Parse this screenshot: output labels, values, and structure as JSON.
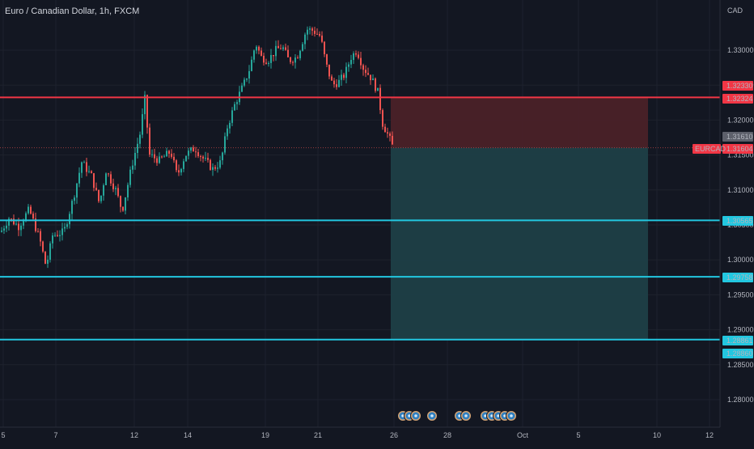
{
  "header": {
    "symbol_title": "Euro / Canadian Dollar, 1h, FXCM",
    "currency": "CAD"
  },
  "colors": {
    "background": "#131722",
    "grid": "#1e222d",
    "candle_up": "#26a69a",
    "candle_down": "#ef5350",
    "stop_zone": "#4a2128",
    "target_zone": "#1d3f47",
    "resistance_line": "#f23645",
    "support_line": "#22c7e0"
  },
  "chart_data": {
    "type": "candlestick",
    "instrument": "EURCAD",
    "timeframe": "1h",
    "y_ticks": [
      "1.33000",
      "1.32500",
      "1.32000",
      "1.31500",
      "1.31000",
      "1.30500",
      "1.30000",
      "1.29500",
      "1.29000",
      "1.28500",
      "1.28000"
    ],
    "x_ticks": [
      "5",
      "7",
      "12",
      "14",
      "19",
      "21",
      "26",
      "28",
      "Oct",
      "5",
      "10",
      "12"
    ],
    "ylim": [
      1.2765,
      1.3385
    ],
    "price_labels": {
      "upper_a": "1.32330",
      "upper_b": "1.32324",
      "current_a": "1.31610",
      "current_symbol": "EURCAD",
      "current_b": "1.31604",
      "support_1": "1.30565",
      "support_2": "1.29758",
      "support_3a": "1.28861",
      "support_3b": "1.28860"
    },
    "levels": {
      "resistance": 1.32324,
      "current": 1.31604,
      "support": [
        1.30565,
        1.29758,
        1.2886
      ]
    },
    "position": {
      "type": "short",
      "entry": 1.31604,
      "stop": 1.32324,
      "target": 1.28861
    },
    "price_path": [
      [
        0,
        1.304
      ],
      [
        10,
        1.306
      ],
      [
        22,
        1.3048
      ],
      [
        35,
        1.3072
      ],
      [
        48,
        1.303
      ],
      [
        56,
        1.299
      ],
      [
        64,
        1.3035
      ],
      [
        78,
        1.304
      ],
      [
        90,
        1.309
      ],
      [
        100,
        1.314
      ],
      [
        112,
        1.312
      ],
      [
        122,
        1.308
      ],
      [
        130,
        1.3128
      ],
      [
        142,
        1.31
      ],
      [
        150,
        1.307
      ],
      [
        162,
        1.3135
      ],
      [
        172,
        1.318
      ],
      [
        178,
        1.323
      ],
      [
        184,
        1.315
      ],
      [
        196,
        1.3142
      ],
      [
        210,
        1.3155
      ],
      [
        218,
        1.312
      ],
      [
        228,
        1.315
      ],
      [
        240,
        1.316
      ],
      [
        250,
        1.3145
      ],
      [
        262,
        1.313
      ],
      [
        272,
        1.314
      ],
      [
        280,
        1.319
      ],
      [
        290,
        1.3225
      ],
      [
        300,
        1.325
      ],
      [
        308,
        1.3275
      ],
      [
        315,
        1.331
      ],
      [
        322,
        1.329
      ],
      [
        330,
        1.3285
      ],
      [
        340,
        1.33
      ],
      [
        348,
        1.3305
      ],
      [
        356,
        1.3285
      ],
      [
        366,
        1.329
      ],
      [
        372,
        1.331
      ],
      [
        378,
        1.333
      ],
      [
        386,
        1.3328
      ],
      [
        395,
        1.332
      ],
      [
        402,
        1.328
      ],
      [
        410,
        1.325
      ],
      [
        418,
        1.3255
      ],
      [
        425,
        1.3265
      ],
      [
        433,
        1.329
      ],
      [
        440,
        1.33
      ],
      [
        448,
        1.3275
      ],
      [
        458,
        1.326
      ],
      [
        466,
        1.324
      ],
      [
        472,
        1.3195
      ],
      [
        480,
        1.3175
      ],
      [
        485,
        1.316
      ]
    ],
    "event_markers": [
      {
        "x_day": "26",
        "count": 3
      },
      {
        "x_day": "28",
        "count": 1
      },
      {
        "x_day": "28b",
        "count": 2
      },
      {
        "x_day": "Oct",
        "count": 5
      }
    ]
  }
}
